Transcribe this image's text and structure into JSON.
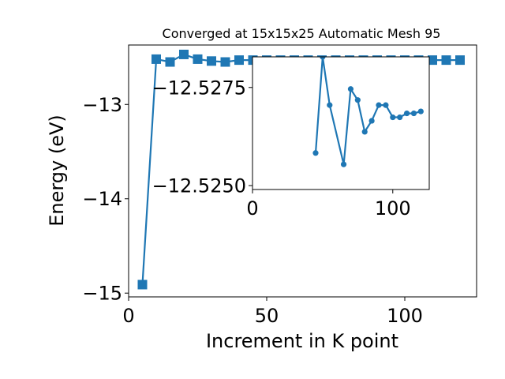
{
  "colors": {
    "series": "#1f77b4",
    "axes": "#000000",
    "background": "#ffffff"
  },
  "chart_data": [
    {
      "type": "line",
      "marker": "square",
      "title": "Converged at 15x15x25 Automatic Mesh 95",
      "xlabel": "Increment in K point",
      "ylabel": "Energy (eV)",
      "xlim": [
        0,
        126
      ],
      "ylim": [
        -15.04,
        -12.37
      ],
      "xticks": [
        0,
        50,
        100
      ],
      "xtick_labels": [
        "0",
        "50",
        "100"
      ],
      "yticks": [
        -13,
        -14,
        -15
      ],
      "ytick_labels": [
        "−13",
        "−14",
        "−15"
      ],
      "x": [
        5,
        10,
        15,
        20,
        25,
        30,
        35,
        40,
        45,
        50,
        55,
        60,
        65,
        70,
        75,
        80,
        85,
        90,
        95,
        100,
        105,
        110,
        115,
        120
      ],
      "y": [
        -14.91,
        -12.52,
        -12.55,
        -12.47,
        -12.52,
        -12.54,
        -12.55,
        -12.53,
        -12.53,
        -12.53,
        -12.53,
        -12.53,
        -12.53,
        -12.53,
        -12.53,
        -12.53,
        -12.53,
        -12.53,
        -12.53,
        -12.53,
        -12.53,
        -12.53,
        -12.53,
        -12.53
      ]
    },
    {
      "type": "line",
      "marker": "circle",
      "inset": true,
      "xlim": [
        0,
        126
      ],
      "ylim": [
        -12.5249,
        -12.52828
      ],
      "xticks": [
        0,
        100
      ],
      "xtick_labels": [
        "0",
        "100"
      ],
      "yticks": [
        -12.5275,
        -12.525
      ],
      "ytick_labels": [
        "−12.5275",
        "−12.5250"
      ],
      "x": [
        45,
        50,
        55,
        65,
        70,
        75,
        80,
        85,
        90,
        95,
        100,
        105,
        110,
        115,
        120
      ],
      "y": [
        -12.52583,
        -12.52828,
        -12.52705,
        -12.52554,
        -12.52746,
        -12.52718,
        -12.52637,
        -12.52665,
        -12.52705,
        -12.52705,
        -12.52674,
        -12.52674,
        -12.52684,
        -12.52684,
        -12.52689
      ]
    }
  ]
}
